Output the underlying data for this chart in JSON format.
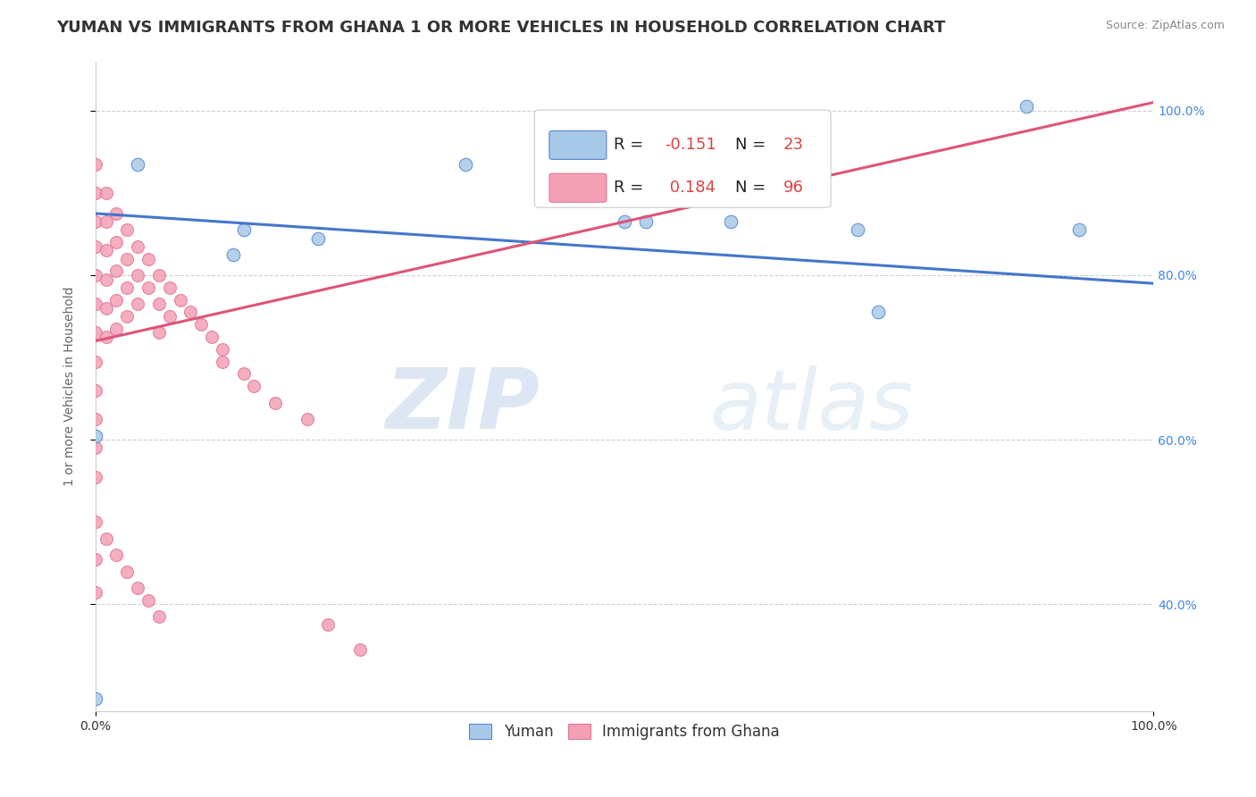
{
  "title": "YUMAN VS IMMIGRANTS FROM GHANA 1 OR MORE VEHICLES IN HOUSEHOLD CORRELATION CHART",
  "source_text": "Source: ZipAtlas.com",
  "ylabel": "1 or more Vehicles in Household",
  "legend_labels": [
    "Yuman",
    "Immigrants from Ghana"
  ],
  "yuman_color": "#a8c8e8",
  "ghana_color": "#f4a0b4",
  "yuman_edge": "#5588cc",
  "ghana_edge": "#dd7799",
  "trendline_yuman": "#4477cc",
  "trendline_ghana": "#dd5577",
  "watermark_zip": "ZIP",
  "watermark_atlas": "atlas",
  "ytick_values": [
    0.4,
    0.6,
    0.8,
    1.0
  ],
  "ytick_labels": [
    "40.0%",
    "60.0%",
    "80.0%",
    "100.0%"
  ],
  "xlim": [
    0.0,
    1.0
  ],
  "ylim": [
    0.27,
    1.06
  ],
  "yuman_x": [
    0.0,
    0.0,
    0.04,
    0.13,
    0.14,
    0.21,
    0.35,
    0.5,
    0.52,
    0.6,
    0.72,
    0.74,
    0.88,
    0.93
  ],
  "yuman_y": [
    0.285,
    0.605,
    0.935,
    0.825,
    0.855,
    0.845,
    0.935,
    0.865,
    0.865,
    0.865,
    0.855,
    0.755,
    1.005,
    0.855
  ],
  "ghana_x": [
    0.0,
    0.0,
    0.0,
    0.0,
    0.0,
    0.0,
    0.0,
    0.0,
    0.0,
    0.0,
    0.0,
    0.0,
    0.01,
    0.01,
    0.01,
    0.01,
    0.01,
    0.01,
    0.02,
    0.02,
    0.02,
    0.02,
    0.02,
    0.03,
    0.03,
    0.03,
    0.03,
    0.04,
    0.04,
    0.04,
    0.05,
    0.05,
    0.06,
    0.06,
    0.06,
    0.07,
    0.07,
    0.08,
    0.09,
    0.1,
    0.11,
    0.12,
    0.12,
    0.14,
    0.15,
    0.17,
    0.2,
    0.22,
    0.25
  ],
  "ghana_y": [
    0.935,
    0.9,
    0.865,
    0.835,
    0.8,
    0.765,
    0.73,
    0.695,
    0.66,
    0.625,
    0.59,
    0.555,
    0.9,
    0.865,
    0.83,
    0.795,
    0.76,
    0.725,
    0.875,
    0.84,
    0.805,
    0.77,
    0.735,
    0.855,
    0.82,
    0.785,
    0.75,
    0.835,
    0.8,
    0.765,
    0.82,
    0.785,
    0.8,
    0.765,
    0.73,
    0.785,
    0.75,
    0.77,
    0.755,
    0.74,
    0.725,
    0.71,
    0.695,
    0.68,
    0.665,
    0.645,
    0.625,
    0.375,
    0.345
  ],
  "ghana_low_x": [
    0.0,
    0.0,
    0.0,
    0.01,
    0.02,
    0.03,
    0.04,
    0.05,
    0.06
  ],
  "ghana_low_y": [
    0.5,
    0.455,
    0.415,
    0.48,
    0.46,
    0.44,
    0.42,
    0.405,
    0.385
  ],
  "yuman_trend_x": [
    0.0,
    1.0
  ],
  "yuman_trend_y": [
    0.875,
    0.79
  ],
  "ghana_trend_x": [
    0.0,
    1.0
  ],
  "ghana_trend_y": [
    0.72,
    1.01
  ],
  "background_color": "#ffffff",
  "grid_color": "#bbbbbb",
  "title_fontsize": 13,
  "axis_label_fontsize": 10,
  "tick_fontsize": 10,
  "legend_fontsize": 13,
  "R_yuman": "-0.151",
  "N_yuman": "23",
  "R_ghana": "0.184",
  "N_ghana": "96"
}
